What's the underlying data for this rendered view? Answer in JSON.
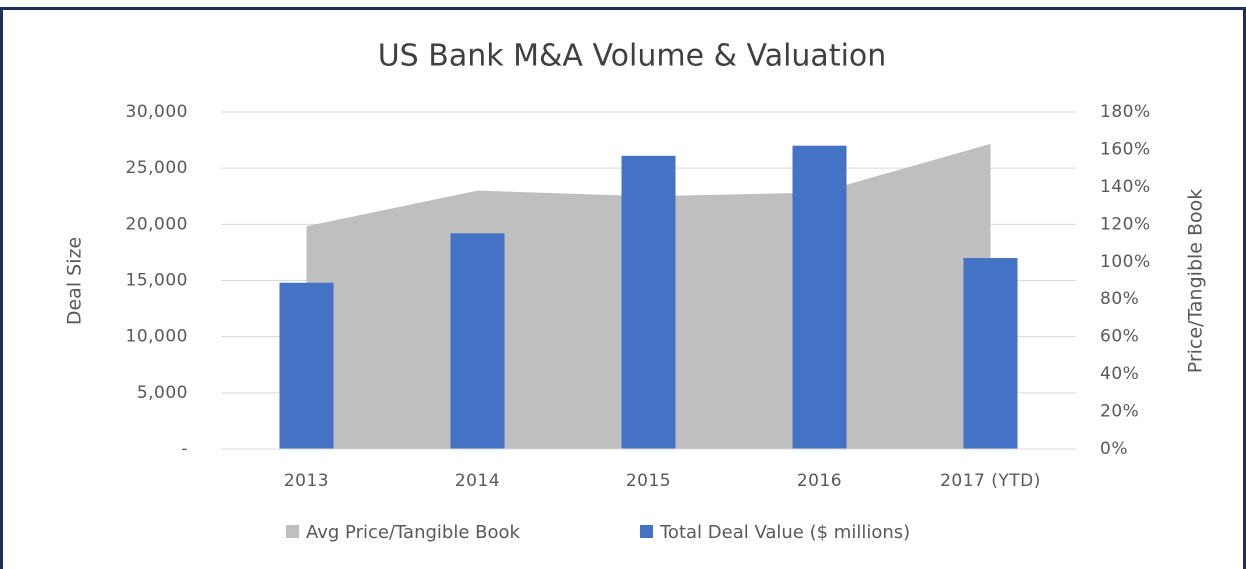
{
  "chart_data": {
    "type": "combo",
    "title": "US Bank M&A Volume & Valuation",
    "ylabel": "Deal Size",
    "y2label": "Price/Tangible Book",
    "categories": [
      "2013",
      "2014",
      "2015",
      "2016",
      "2017 (YTD)"
    ],
    "series": [
      {
        "name": "Avg Price/Tangible Book",
        "type": "area",
        "axis": "y2",
        "color": "#bfbfbf",
        "values": [
          119,
          138,
          135,
          137,
          163
        ]
      },
      {
        "name": "Total Deal Value ($ millions)",
        "type": "bar",
        "axis": "y",
        "color": "#4472c4",
        "values": [
          14800,
          19200,
          26100,
          27000,
          17000
        ]
      }
    ],
    "ylim": [
      0,
      30000
    ],
    "yticks": [
      {
        "value": 0,
        "label": "-"
      },
      {
        "value": 5000,
        "label": "5,000"
      },
      {
        "value": 10000,
        "label": "10,000"
      },
      {
        "value": 15000,
        "label": "15,000"
      },
      {
        "value": 20000,
        "label": "20,000"
      },
      {
        "value": 25000,
        "label": "25,000"
      },
      {
        "value": 30000,
        "label": "30,000"
      }
    ],
    "y2lim": [
      0,
      180
    ],
    "y2ticks": [
      {
        "value": 0,
        "label": "0%"
      },
      {
        "value": 20,
        "label": "20%"
      },
      {
        "value": 40,
        "label": "40%"
      },
      {
        "value": 60,
        "label": "60%"
      },
      {
        "value": 80,
        "label": "80%"
      },
      {
        "value": 100,
        "label": "100%"
      },
      {
        "value": 120,
        "label": "120%"
      },
      {
        "value": 140,
        "label": "140%"
      },
      {
        "value": 160,
        "label": "160%"
      },
      {
        "value": 180,
        "label": "180%"
      }
    ],
    "grid": true,
    "legend": "bottom"
  }
}
